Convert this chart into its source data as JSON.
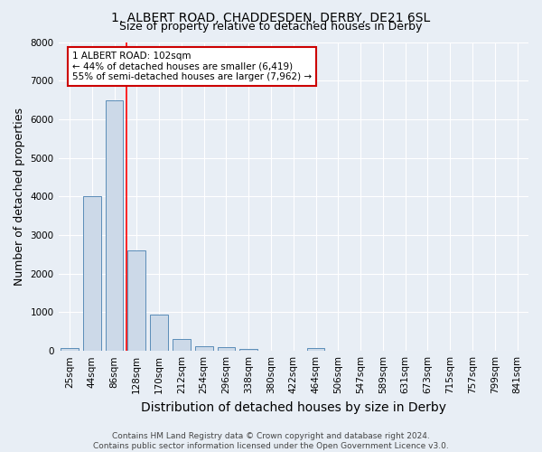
{
  "title": "1, ALBERT ROAD, CHADDESDEN, DERBY, DE21 6SL",
  "subtitle": "Size of property relative to detached houses in Derby",
  "xlabel": "Distribution of detached houses by size in Derby",
  "ylabel": "Number of detached properties",
  "bin_labels": [
    "25sqm",
    "44sqm",
    "86sqm",
    "128sqm",
    "170sqm",
    "212sqm",
    "254sqm",
    "296sqm",
    "338sqm",
    "380sqm",
    "422sqm",
    "464sqm",
    "506sqm",
    "547sqm",
    "589sqm",
    "631sqm",
    "673sqm",
    "715sqm",
    "757sqm",
    "799sqm",
    "841sqm"
  ],
  "bar_heights": [
    70,
    4000,
    6500,
    2600,
    950,
    320,
    110,
    90,
    60,
    5,
    5,
    80,
    5,
    0,
    0,
    0,
    0,
    0,
    0,
    0,
    0
  ],
  "bar_color": "#ccd9e8",
  "bar_edge_color": "#5b8db8",
  "bar_width": 0.8,
  "ylim": [
    0,
    8000
  ],
  "yticks": [
    0,
    1000,
    2000,
    3000,
    4000,
    5000,
    6000,
    7000,
    8000
  ],
  "red_line_x": 2.55,
  "annotation_text": "1 ALBERT ROAD: 102sqm\n← 44% of detached houses are smaller (6,419)\n55% of semi-detached houses are larger (7,962) →",
  "annotation_box_color": "#ffffff",
  "annotation_border_color": "#cc0000",
  "footer_line1": "Contains HM Land Registry data © Crown copyright and database right 2024.",
  "footer_line2": "Contains public sector information licensed under the Open Government Licence v3.0.",
  "background_color": "#e8eef5",
  "plot_background_color": "#e8eef5",
  "grid_color": "#ffffff",
  "title_fontsize": 10,
  "subtitle_fontsize": 9,
  "axis_label_fontsize": 9,
  "tick_fontsize": 7.5,
  "annotation_fontsize": 7.5,
  "footer_fontsize": 6.5
}
